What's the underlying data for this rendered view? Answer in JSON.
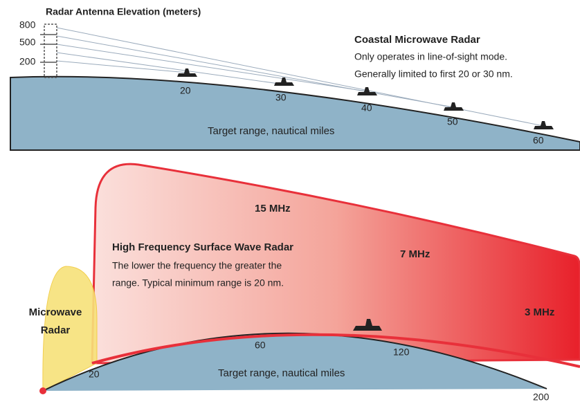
{
  "top_panel": {
    "title": "Radar Antenna Elevation (meters)",
    "elevation_ticks": [
      800,
      500,
      200
    ],
    "range_labels": [
      20,
      30,
      40,
      50,
      60
    ],
    "axis_label": "Target range, nautical miles",
    "heading": "Coastal Microwave Radar",
    "lines": [
      "Only operates in line-of-sight mode.",
      "Generally limited to first 20 or 30 nm."
    ]
  },
  "bottom_panel": {
    "frequencies": [
      "15 MHz",
      "7 MHz",
      "3 MHz"
    ],
    "heading": "High Frequency Surface Wave Radar",
    "lines": [
      "The lower the frequency the greater the",
      "range. Typical minimum range is 20 nm."
    ],
    "microwave_label": [
      "Microwave",
      "Radar"
    ],
    "range_labels": [
      20,
      60,
      120,
      200
    ],
    "axis_label": "Target range, nautical miles"
  }
}
